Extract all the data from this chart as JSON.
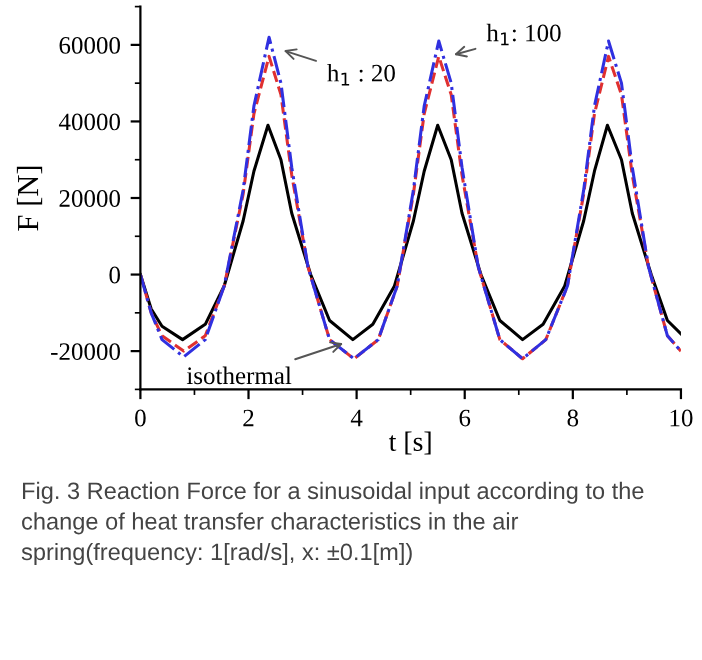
{
  "chart_data": {
    "type": "line",
    "xlabel": "t [s]",
    "ylabel": "F [N]",
    "xlim": [
      0,
      10
    ],
    "xticks": [
      0,
      2,
      4,
      6,
      8,
      10
    ],
    "ylim": [
      -30000,
      70000
    ],
    "yticks": [
      -20000,
      0,
      20000,
      40000,
      60000
    ],
    "grid": false,
    "legend": false,
    "marker": "none",
    "series": [
      {
        "color": "#000000",
        "line_style": "solid",
        "x": [
          0,
          0.2,
          0.4,
          0.78,
          1.2,
          1.55,
          1.9,
          2.1,
          2.36,
          2.6,
          2.8,
          3.15,
          3.5,
          3.93,
          4.3,
          4.7,
          5.05,
          5.25,
          5.5,
          5.75,
          5.95,
          6.3,
          6.65,
          7.07,
          7.45,
          7.85,
          8.2,
          8.4,
          8.64,
          8.9,
          9.1,
          9.45,
          9.75,
          10
        ],
        "values": [
          0,
          -9000,
          -13500,
          -17000,
          -13000,
          -3000,
          14000,
          27000,
          39000,
          30000,
          16000,
          0,
          -12000,
          -17000,
          -13000,
          -3000,
          14000,
          27000,
          39000,
          30000,
          16000,
          0,
          -12000,
          -17000,
          -13000,
          -3000,
          14000,
          27000,
          39000,
          30000,
          16000,
          0,
          -12000,
          -15500
        ]
      },
      {
        "color": "#e03030",
        "line_style": "dashed",
        "x": [
          0,
          0.2,
          0.4,
          0.8,
          1.2,
          1.55,
          1.9,
          2.1,
          2.38,
          2.6,
          2.8,
          3.1,
          3.5,
          3.95,
          4.4,
          4.75,
          5.05,
          5.25,
          5.52,
          5.75,
          5.95,
          6.25,
          6.65,
          7.07,
          7.5,
          7.9,
          8.2,
          8.4,
          8.66,
          8.9,
          9.1,
          9.4,
          9.75,
          10
        ],
        "values": [
          0,
          -10000,
          -16000,
          -20000,
          -16000,
          -3000,
          21000,
          42000,
          57000,
          47000,
          26000,
          2000,
          -17000,
          -22000,
          -17000,
          -3000,
          21000,
          42000,
          57000,
          47000,
          26000,
          2000,
          -17000,
          -22000,
          -17000,
          -3000,
          21000,
          42000,
          57000,
          47000,
          26000,
          2000,
          -16000,
          -20000
        ]
      },
      {
        "color": "#3030e0",
        "line_style": "dashdot",
        "x": [
          0,
          0.2,
          0.4,
          0.8,
          1.2,
          1.55,
          1.9,
          2.1,
          2.38,
          2.6,
          2.8,
          3.1,
          3.5,
          3.95,
          4.4,
          4.75,
          5.05,
          5.25,
          5.52,
          5.75,
          5.95,
          6.25,
          6.65,
          7.07,
          7.5,
          7.9,
          8.2,
          8.4,
          8.66,
          8.9,
          9.1,
          9.4,
          9.75,
          10
        ],
        "values": [
          0,
          -10000,
          -17000,
          -21500,
          -17000,
          -3000,
          22000,
          44000,
          62000,
          50000,
          28000,
          2000,
          -17000,
          -22000,
          -17000,
          -3000,
          22000,
          44000,
          61000,
          50000,
          28000,
          2000,
          -17000,
          -22000,
          -17000,
          -3000,
          22000,
          44000,
          61000,
          50000,
          28000,
          2000,
          -16000,
          -20000
        ]
      }
    ],
    "annotations": [
      {
        "text": "h$_{1}$ : 20",
        "x": 2.55,
        "y": 59000
      },
      {
        "text": "h$_{1}$: 100",
        "x": 5.7,
        "y": 57000
      },
      {
        "text": "isothermal",
        "x": 3.85,
        "y": -17500
      },
      "Fig. 3 Reaction Force for a sinusoidal input according to the change of heat transfer characteristics in the air spring(frequency: 1[rad/s], x: ±0.1[m])"
    ]
  }
}
